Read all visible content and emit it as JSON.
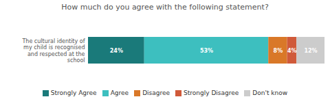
{
  "chart_data": {
    "type": "bar",
    "orientation": "horizontal",
    "stacked": true,
    "title": "How much do you agree with the following statement?",
    "categories": [
      "The cultural identity of\nmy child is recognised\nand respected at the\nschool"
    ],
    "series": [
      {
        "name": "Strongly Agree",
        "color": "#1a7a7a",
        "values": [
          24
        ],
        "value_labels": [
          "24%"
        ]
      },
      {
        "name": "Agree",
        "color": "#3dbfbf",
        "values": [
          53
        ],
        "value_labels": [
          "53%"
        ]
      },
      {
        "name": "Disagree",
        "color": "#d97828",
        "values": [
          8
        ],
        "value_labels": [
          "8%"
        ]
      },
      {
        "name": "Strongly Disagree",
        "color": "#d05a3a",
        "values": [
          4
        ],
        "value_labels": [
          "4%"
        ]
      },
      {
        "name": "Don't know",
        "color": "#cccccc",
        "values": [
          12
        ],
        "value_labels": [
          "12%"
        ]
      }
    ],
    "xlim": [
      0,
      101
    ],
    "data_labels": true,
    "tick_labels": "y",
    "grid": false,
    "legend": "bottom"
  }
}
